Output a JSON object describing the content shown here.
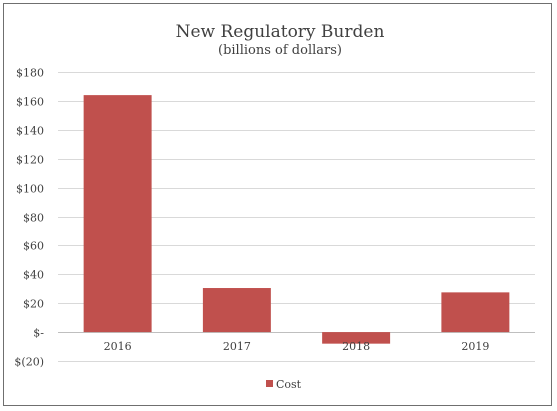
{
  "chart_data": {
    "type": "bar",
    "title": "New Regulatory Burden",
    "subtitle": "(billions of dollars)",
    "xlabel": "",
    "ylabel": "",
    "categories": [
      "2016",
      "2017",
      "2018",
      "2019"
    ],
    "series": [
      {
        "name": "Cost",
        "values": [
          164,
          30.5,
          -8,
          27.5
        ],
        "color": "#c0504d"
      }
    ],
    "ylim": [
      -20,
      180
    ],
    "yticks": [
      180,
      160,
      140,
      120,
      100,
      80,
      60,
      40,
      20,
      0,
      -20
    ],
    "ytick_labels": [
      "$180",
      "$160",
      "$140",
      "$120",
      "$100",
      "$80",
      "$60",
      "$40",
      "$20",
      "$-",
      "$(20)"
    ],
    "grid": true,
    "legend": "bottom"
  }
}
